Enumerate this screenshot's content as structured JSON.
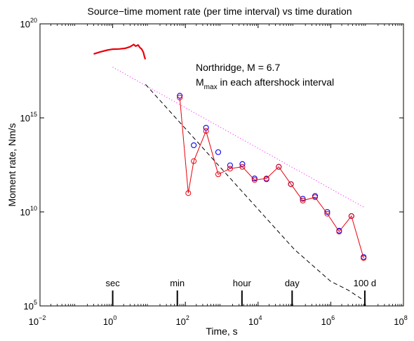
{
  "chart_data": {
    "type": "line",
    "title": "Source−time moment rate (per time interval) vs time duration",
    "xlabel": "Time, s",
    "ylabel": "Moment rate, Nm/s",
    "x_scale": "log",
    "y_scale": "log",
    "xlim": [
      0.01,
      100000000
    ],
    "ylim": [
      100000,
      100000000000000000000
    ],
    "x_ticks": [
      {
        "base": "10",
        "exp": "−2",
        "value": 0.01
      },
      {
        "base": "10",
        "exp": "0",
        "value": 1
      },
      {
        "base": "10",
        "exp": "2",
        "value": 100
      },
      {
        "base": "10",
        "exp": "4",
        "value": 10000
      },
      {
        "base": "10",
        "exp": "6",
        "value": 1000000
      },
      {
        "base": "10",
        "exp": "8",
        "value": 100000000
      }
    ],
    "y_ticks": [
      {
        "base": "10",
        "exp": "5",
        "value": 100000
      },
      {
        "base": "10",
        "exp": "10",
        "value": 10000000000
      },
      {
        "base": "10",
        "exp": "15",
        "value": 1000000000000000
      },
      {
        "base": "10",
        "exp": "20",
        "value": 100000000000000000000
      }
    ],
    "grid": false,
    "annotations": {
      "event": "Northridge, M = 6.7",
      "mmax_base": "M",
      "mmax_sub": "max",
      "mmax_rest": " in each aftershock interval"
    },
    "time_markers": [
      {
        "label": "sec",
        "x": 1
      },
      {
        "label": "min",
        "x": 60
      },
      {
        "label": "hour",
        "x": 3600
      },
      {
        "label": "day",
        "x": 86400
      },
      {
        "label": "100 d",
        "x": 8640000
      }
    ],
    "series": [
      {
        "style": "solid-red-thick",
        "color": "#e8000b",
        "x": [
          0.3,
          0.45,
          0.7,
          1.0,
          1.5,
          2.2,
          3.0,
          3.8,
          4.3,
          5.0,
          5.6,
          6.3,
          7.0,
          7.5,
          7.9
        ],
        "y": [
          2.5e+18,
          3.2e+18,
          4e+18,
          4.5e+18,
          4.6e+18,
          5e+18,
          6e+18,
          8e+18,
          6.5e+18,
          7.5e+18,
          5.5e+18,
          4.5e+18,
          3e+18,
          1.8e+18,
          1.3e+18
        ]
      },
      {
        "style": "blue-circles",
        "color": "#0000ff",
        "x": [
          70,
          170,
          370,
          800,
          1700,
          3700,
          8000,
          17000,
          37000,
          80000,
          170000,
          370000,
          800000,
          1700000,
          3700000,
          8000000
        ],
        "y": [
          1.5e+16,
          35000000000000.0,
          300000000000000.0,
          15000000000000.0,
          3000000000000.0,
          3500000000000.0,
          600000000000.0,
          550000000000.0,
          2500000000000.0,
          300000000000.0,
          50000000000.0,
          70000000000.0,
          10000000000.0,
          1000000000.0,
          6000000000.0,
          40000000.0
        ]
      },
      {
        "style": "red-line-circles",
        "color": "#e8000b",
        "x": [
          70,
          120,
          170,
          370,
          800,
          1700,
          3700,
          8000,
          17000,
          37000,
          80000,
          170000,
          370000,
          800000,
          1700000,
          3700000,
          8000000
        ],
        "y": [
          1.2e+16,
          100000000000.0,
          5000000000000.0,
          200000000000000.0,
          1000000000000.0,
          2000000000000.0,
          2500000000000.0,
          500000000000.0,
          600000000000.0,
          2500000000000.0,
          300000000000.0,
          40000000000.0,
          60000000000.0,
          8000000000.0,
          900000000.0,
          6000000000.0,
          35000000.0
        ]
      },
      {
        "style": "dotted-magenta",
        "color": "#ff00ff",
        "x": [
          1.0,
          8000000
        ],
        "y": [
          5e+17,
          18000000000.0
        ]
      },
      {
        "style": "dashed-black",
        "color": "#000000",
        "x": [
          8,
          100000,
          1000000,
          3000000,
          8000000
        ],
        "y": [
          6e+16,
          100000000.0,
          2000000.0,
          700000.0,
          200000.0
        ]
      }
    ]
  }
}
